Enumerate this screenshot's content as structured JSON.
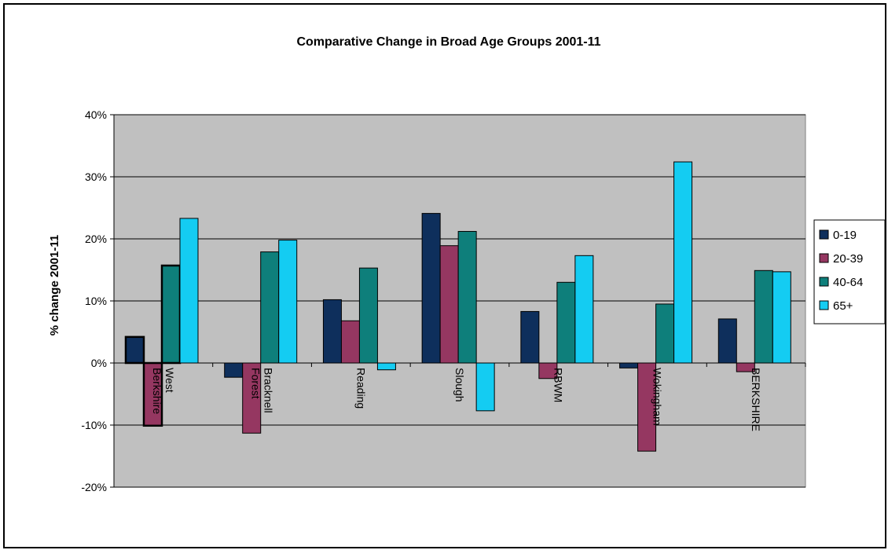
{
  "chart_data": {
    "type": "bar",
    "title": "Comparative Change in Broad Age Groups 2001-11",
    "xlabel": "",
    "ylabel": "% change 2001-11",
    "ylim": [
      -0.2,
      0.4
    ],
    "yticks": [
      -0.2,
      -0.1,
      0,
      0.1,
      0.2,
      0.3,
      0.4
    ],
    "ytick_labels": [
      "-20%",
      "-10%",
      "0%",
      "10%",
      "20%",
      "30%",
      "40%"
    ],
    "categories": [
      "West Berkshire",
      "Bracknell Forest",
      "Reading",
      "Slough",
      "RBWM",
      "Wokingham",
      "BERKSHIRE"
    ],
    "category_lines": [
      [
        "West",
        "Berkshire"
      ],
      [
        "Bracknell",
        "Forest"
      ],
      [
        "Reading"
      ],
      [
        "Slough"
      ],
      [
        "RBWM"
      ],
      [
        "Wokingham"
      ],
      [
        "BERKSHIRE"
      ]
    ],
    "series": [
      {
        "name": "0-19",
        "color": "#0E2F5C",
        "values": [
          0.042,
          -0.023,
          0.102,
          0.241,
          0.083,
          -0.008,
          0.071
        ]
      },
      {
        "name": "20-39",
        "color": "#953761",
        "values": [
          -0.101,
          -0.113,
          0.068,
          0.189,
          -0.025,
          -0.142,
          -0.014
        ]
      },
      {
        "name": "40-64",
        "color": "#0E7F7B",
        "values": [
          0.157,
          0.179,
          0.153,
          0.212,
          0.13,
          0.095,
          0.149
        ]
      },
      {
        "name": "65+",
        "color": "#14CCF2",
        "values": [
          0.233,
          0.198,
          -0.011,
          -0.077,
          0.173,
          0.324,
          0.147
        ]
      }
    ],
    "grid": true,
    "plot_background": "#C0C0C0",
    "legend_position": "right"
  }
}
